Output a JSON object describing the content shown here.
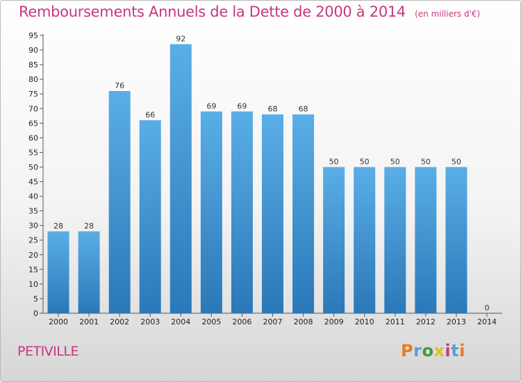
{
  "chart_data": {
    "type": "bar",
    "title": "Remboursements Annuels de la Dette de 2000 à 2014",
    "subtitle": "(en milliers d'€)",
    "categories": [
      "2000",
      "2001",
      "2002",
      "2003",
      "2004",
      "2005",
      "2006",
      "2007",
      "2008",
      "2009",
      "2010",
      "2011",
      "2012",
      "2013",
      "2014"
    ],
    "values": [
      28,
      28,
      76,
      66,
      92,
      69,
      69,
      68,
      68,
      50,
      50,
      50,
      50,
      50,
      0
    ],
    "ylim": [
      0,
      95
    ],
    "ytick_step": 5,
    "grid": false,
    "bar_color": "#4f9fdc"
  },
  "footer": {
    "commune": "PETIVILLE",
    "logo_text": "Proxiti",
    "logo_colors": [
      "#e57b22",
      "#5a9fd4",
      "#3f9a35",
      "#e0c11c",
      "#c8377d",
      "#5a9fd4",
      "#e57b22"
    ]
  },
  "colors": {
    "accent": "#c8377d"
  }
}
